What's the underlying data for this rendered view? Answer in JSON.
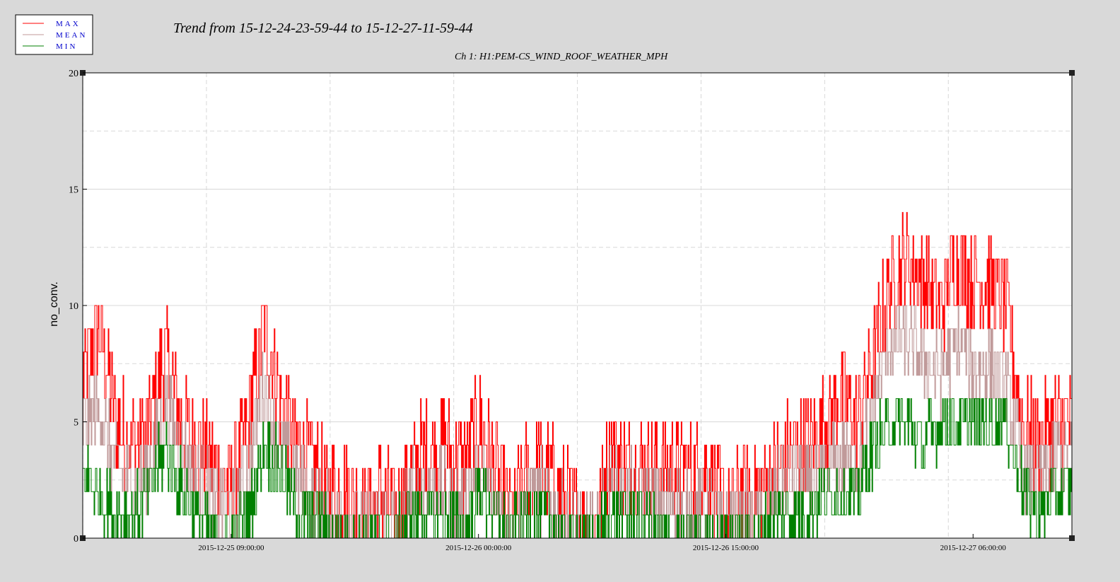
{
  "chart_data": {
    "type": "line",
    "title": "Trend from 15-12-24-23-59-44 to 15-12-27-11-59-44",
    "subtitle": "Ch 1: H1:PEM-CS_WIND_ROOF_WEATHER_MPH",
    "xlabel": "",
    "ylabel": "no_conv.",
    "ylim": [
      0,
      20
    ],
    "y_ticks": [
      "0",
      "5",
      "10",
      "15",
      "20"
    ],
    "x_ticks": [
      {
        "value": "2015-12-25 09:00:00",
        "hours": 9.0
      },
      {
        "value": "2015-12-26 00:00:00",
        "hours": 24.0
      },
      {
        "value": "2015-12-26 15:00:00",
        "hours": 39.0
      },
      {
        "value": "2015-12-27 06:00:00",
        "hours": 54.0
      }
    ],
    "x_range_label_start": "15-12-24-23-59-44",
    "x_range_label_end": "15-12-27-11-59-44",
    "grid": true,
    "legend_position": "top-left",
    "series": [
      {
        "name": "MAX",
        "color": "#ff0000",
        "points": [
          [
            "2015-12-25 00:00",
            7
          ],
          [
            "2015-12-25 01:00",
            9
          ],
          [
            "2015-12-25 02:00",
            5
          ],
          [
            "2015-12-25 03:00",
            4
          ],
          [
            "2015-12-25 04:00",
            5
          ],
          [
            "2015-12-25 05:00",
            8
          ],
          [
            "2015-12-25 06:00",
            5
          ],
          [
            "2015-12-25 07:00",
            4
          ],
          [
            "2015-12-25 08:00",
            3
          ],
          [
            "2015-12-25 09:00",
            2
          ],
          [
            "2015-12-25 10:00",
            5
          ],
          [
            "2015-12-25 11:00",
            9
          ],
          [
            "2015-12-25 12:00",
            6
          ],
          [
            "2015-12-25 13:00",
            4
          ],
          [
            "2015-12-25 14:00",
            3
          ],
          [
            "2015-12-25 15:00",
            2
          ],
          [
            "2015-12-25 16:00",
            2
          ],
          [
            "2015-12-25 17:00",
            1
          ],
          [
            "2015-12-25 18:00",
            2
          ],
          [
            "2015-12-25 19:00",
            1
          ],
          [
            "2015-12-25 20:00",
            3
          ],
          [
            "2015-12-25 21:00",
            4
          ],
          [
            "2015-12-25 22:00",
            4
          ],
          [
            "2015-12-25 23:00",
            3
          ],
          [
            "2015-12-26 00:00",
            5
          ],
          [
            "2015-12-26 01:00",
            3
          ],
          [
            "2015-12-26 02:00",
            1
          ],
          [
            "2015-12-26 03:00",
            3
          ],
          [
            "2015-12-26 04:00",
            3
          ],
          [
            "2015-12-26 05:00",
            2
          ],
          [
            "2015-12-26 06:00",
            1
          ],
          [
            "2015-12-26 07:00",
            0
          ],
          [
            "2015-12-26 08:00",
            4
          ],
          [
            "2015-12-26 09:00",
            3
          ],
          [
            "2015-12-26 10:00",
            3
          ],
          [
            "2015-12-26 11:00",
            3
          ],
          [
            "2015-12-26 12:00",
            3
          ],
          [
            "2015-12-26 13:00",
            3
          ],
          [
            "2015-12-26 14:00",
            3
          ],
          [
            "2015-12-26 15:00",
            1
          ],
          [
            "2015-12-26 16:00",
            2
          ],
          [
            "2015-12-26 17:00",
            2
          ],
          [
            "2015-12-26 18:00",
            3
          ],
          [
            "2015-12-26 19:00",
            4
          ],
          [
            "2015-12-26 20:00",
            4
          ],
          [
            "2015-12-26 21:00",
            5
          ],
          [
            "2015-12-26 22:00",
            6
          ],
          [
            "2015-12-26 23:00",
            5
          ],
          [
            "2015-12-27 00:00",
            8
          ],
          [
            "2015-12-27 01:00",
            11
          ],
          [
            "2015-12-27 02:00",
            12
          ],
          [
            "2015-12-27 03:00",
            11
          ],
          [
            "2015-12-27 04:00",
            10
          ],
          [
            "2015-12-27 05:00",
            12
          ],
          [
            "2015-12-27 06:00",
            11
          ],
          [
            "2015-12-27 07:00",
            11
          ],
          [
            "2015-12-27 08:00",
            10
          ],
          [
            "2015-12-27 09:00",
            5
          ],
          [
            "2015-12-27 10:00",
            4
          ],
          [
            "2015-12-27 11:00",
            5
          ]
        ]
      },
      {
        "name": "MEAN",
        "color": "#c09a9a",
        "points": [
          [
            "2015-12-25 00:00",
            5
          ],
          [
            "2015-12-25 01:00",
            5.5
          ],
          [
            "2015-12-25 02:00",
            3
          ],
          [
            "2015-12-25 03:00",
            2.5
          ],
          [
            "2015-12-25 04:00",
            3
          ],
          [
            "2015-12-25 05:00",
            6
          ],
          [
            "2015-12-25 06:00",
            3.5
          ],
          [
            "2015-12-25 07:00",
            3
          ],
          [
            "2015-12-25 08:00",
            1.5
          ],
          [
            "2015-12-25 09:00",
            1
          ],
          [
            "2015-12-25 10:00",
            3
          ],
          [
            "2015-12-25 11:00",
            6.5
          ],
          [
            "2015-12-25 12:00",
            4
          ],
          [
            "2015-12-25 13:00",
            2.5
          ],
          [
            "2015-12-25 14:00",
            1.5
          ],
          [
            "2015-12-25 15:00",
            1
          ],
          [
            "2015-12-25 16:00",
            1
          ],
          [
            "2015-12-25 17:00",
            0.5
          ],
          [
            "2015-12-25 18:00",
            1
          ],
          [
            "2015-12-25 19:00",
            0.5
          ],
          [
            "2015-12-25 20:00",
            2
          ],
          [
            "2015-12-25 21:00",
            2.5
          ],
          [
            "2015-12-25 22:00",
            2
          ],
          [
            "2015-12-25 23:00",
            1.5
          ],
          [
            "2015-12-26 00:00",
            3
          ],
          [
            "2015-12-26 01:00",
            2
          ],
          [
            "2015-12-26 02:00",
            0.5
          ],
          [
            "2015-12-26 03:00",
            2
          ],
          [
            "2015-12-26 04:00",
            2
          ],
          [
            "2015-12-26 05:00",
            1
          ],
          [
            "2015-12-26 06:00",
            0.5
          ],
          [
            "2015-12-26 07:00",
            0
          ],
          [
            "2015-12-26 08:00",
            2.5
          ],
          [
            "2015-12-26 09:00",
            2
          ],
          [
            "2015-12-26 10:00",
            2
          ],
          [
            "2015-12-26 11:00",
            1.5
          ],
          [
            "2015-12-26 12:00",
            1.5
          ],
          [
            "2015-12-26 13:00",
            1.5
          ],
          [
            "2015-12-26 14:00",
            1.5
          ],
          [
            "2015-12-26 15:00",
            0.5
          ],
          [
            "2015-12-26 16:00",
            1
          ],
          [
            "2015-12-26 17:00",
            1
          ],
          [
            "2015-12-26 18:00",
            2
          ],
          [
            "2015-12-26 19:00",
            2.5
          ],
          [
            "2015-12-26 20:00",
            2.5
          ],
          [
            "2015-12-26 21:00",
            3
          ],
          [
            "2015-12-26 22:00",
            3.5
          ],
          [
            "2015-12-26 23:00",
            3
          ],
          [
            "2015-12-27 00:00",
            6
          ],
          [
            "2015-12-27 01:00",
            8.5
          ],
          [
            "2015-12-27 02:00",
            8.5
          ],
          [
            "2015-12-27 03:00",
            7.5
          ],
          [
            "2015-12-27 04:00",
            7
          ],
          [
            "2015-12-27 05:00",
            8.5
          ],
          [
            "2015-12-27 06:00",
            7.5
          ],
          [
            "2015-12-27 07:00",
            7.5
          ],
          [
            "2015-12-27 08:00",
            6.5
          ],
          [
            "2015-12-27 09:00",
            3
          ],
          [
            "2015-12-27 10:00",
            2.5
          ],
          [
            "2015-12-27 11:00",
            3.5
          ]
        ]
      },
      {
        "name": "MIN",
        "color": "#008000",
        "points": [
          [
            "2015-12-25 00:00",
            3
          ],
          [
            "2015-12-25 01:00",
            2
          ],
          [
            "2015-12-25 02:00",
            1
          ],
          [
            "2015-12-25 03:00",
            1
          ],
          [
            "2015-12-25 04:00",
            2
          ],
          [
            "2015-12-25 05:00",
            4
          ],
          [
            "2015-12-25 06:00",
            2
          ],
          [
            "2015-12-25 07:00",
            1
          ],
          [
            "2015-12-25 08:00",
            0
          ],
          [
            "2015-12-25 09:00",
            0
          ],
          [
            "2015-12-25 10:00",
            1
          ],
          [
            "2015-12-25 11:00",
            4
          ],
          [
            "2015-12-25 12:00",
            3
          ],
          [
            "2015-12-25 13:00",
            1
          ],
          [
            "2015-12-25 14:00",
            1
          ],
          [
            "2015-12-25 15:00",
            0
          ],
          [
            "2015-12-25 16:00",
            0
          ],
          [
            "2015-12-25 17:00",
            0
          ],
          [
            "2015-12-25 18:00",
            0
          ],
          [
            "2015-12-25 19:00",
            0
          ],
          [
            "2015-12-25 20:00",
            1
          ],
          [
            "2015-12-25 21:00",
            1
          ],
          [
            "2015-12-25 22:00",
            1
          ],
          [
            "2015-12-25 23:00",
            0
          ],
          [
            "2015-12-26 00:00",
            2
          ],
          [
            "2015-12-26 01:00",
            1
          ],
          [
            "2015-12-26 02:00",
            0
          ],
          [
            "2015-12-26 03:00",
            1
          ],
          [
            "2015-12-26 04:00",
            1
          ],
          [
            "2015-12-26 05:00",
            0
          ],
          [
            "2015-12-26 06:00",
            0
          ],
          [
            "2015-12-26 07:00",
            0
          ],
          [
            "2015-12-26 08:00",
            1
          ],
          [
            "2015-12-26 09:00",
            1
          ],
          [
            "2015-12-26 10:00",
            1
          ],
          [
            "2015-12-26 11:00",
            0
          ],
          [
            "2015-12-26 12:00",
            0
          ],
          [
            "2015-12-26 13:00",
            0
          ],
          [
            "2015-12-26 14:00",
            0
          ],
          [
            "2015-12-26 15:00",
            0
          ],
          [
            "2015-12-26 16:00",
            0
          ],
          [
            "2015-12-26 17:00",
            0
          ],
          [
            "2015-12-26 18:00",
            1
          ],
          [
            "2015-12-26 19:00",
            1
          ],
          [
            "2015-12-26 20:00",
            1
          ],
          [
            "2015-12-26 21:00",
            2
          ],
          [
            "2015-12-26 22:00",
            2
          ],
          [
            "2015-12-26 23:00",
            2
          ],
          [
            "2015-12-27 00:00",
            4
          ],
          [
            "2015-12-27 01:00",
            5
          ],
          [
            "2015-12-27 02:00",
            5
          ],
          [
            "2015-12-27 03:00",
            4
          ],
          [
            "2015-12-27 04:00",
            5
          ],
          [
            "2015-12-27 05:00",
            5
          ],
          [
            "2015-12-27 06:00",
            5
          ],
          [
            "2015-12-27 07:00",
            5
          ],
          [
            "2015-12-27 08:00",
            5
          ],
          [
            "2015-12-27 09:00",
            2
          ],
          [
            "2015-12-27 10:00",
            1
          ],
          [
            "2015-12-27 11:00",
            2
          ]
        ]
      }
    ]
  }
}
